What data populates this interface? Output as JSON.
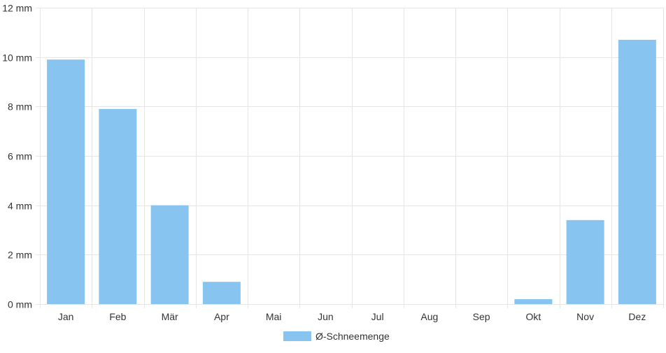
{
  "chart_data": {
    "type": "bar",
    "title": "",
    "xlabel": "",
    "ylabel": "",
    "categories": [
      "Jan",
      "Feb",
      "Mär",
      "Apr",
      "Mai",
      "Jun",
      "Jul",
      "Aug",
      "Sep",
      "Okt",
      "Nov",
      "Dez"
    ],
    "series": [
      {
        "name": "Ø-Schneemenge",
        "values": [
          9.9,
          7.9,
          4.0,
          0.9,
          0,
          0,
          0,
          0,
          0,
          0.2,
          3.4,
          10.7
        ]
      }
    ],
    "ylim": [
      0,
      12
    ],
    "y_ticks": [
      0,
      2,
      4,
      6,
      8,
      10,
      12
    ],
    "y_tick_unit": "mm",
    "grid": true,
    "legend_position": "bottom",
    "colors": {
      "bar": "#87c5f0",
      "grid": "#e5e5e5",
      "text": "#333333"
    }
  }
}
